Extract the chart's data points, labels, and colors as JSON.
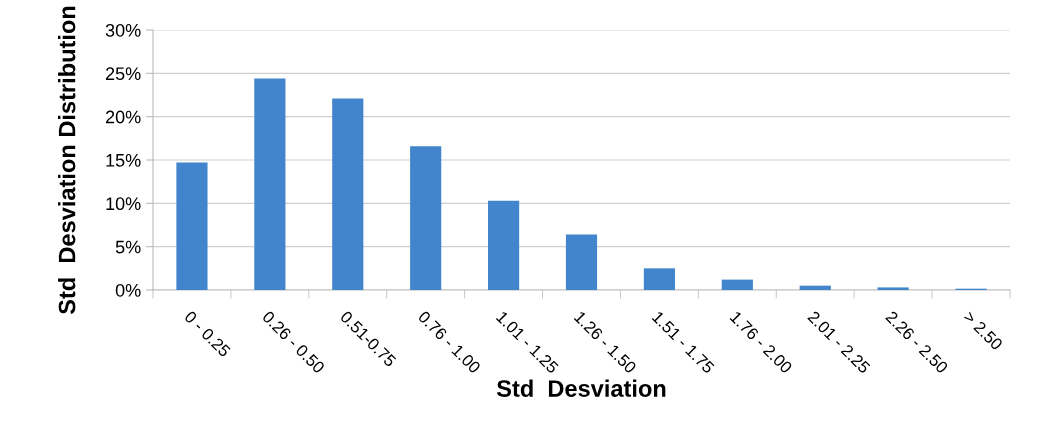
{
  "chart_data": {
    "type": "bar",
    "xlabel": "Std  Desviation",
    "ylabel": "Std  Desviation Distribution",
    "categories": [
      "0 - 0.25",
      "0.26 - 0.50",
      "0.51-0.75",
      "0.76 - 1.00",
      "1.01 - 1.25",
      "1.26 - 1.50",
      "1.51 - 1.75",
      "1.76 - 2.00",
      "2.01 - 2.25",
      "2.26 - 2.50",
      "> 2.50"
    ],
    "values": [
      14.7,
      24.4,
      22.1,
      16.6,
      10.3,
      6.4,
      2.5,
      1.2,
      0.5,
      0.3,
      0.15
    ],
    "color": "#4285cc",
    "ylim": [
      0,
      30
    ],
    "yticks": [
      {
        "value": 0,
        "label": "0%"
      },
      {
        "value": 5,
        "label": "5%"
      },
      {
        "value": 10,
        "label": "10%"
      },
      {
        "value": 15,
        "label": "15%"
      },
      {
        "value": 20,
        "label": "20%"
      },
      {
        "value": 25,
        "label": "25%"
      },
      {
        "value": 30,
        "label": "30%"
      }
    ],
    "grid": "y",
    "legend": false
  }
}
